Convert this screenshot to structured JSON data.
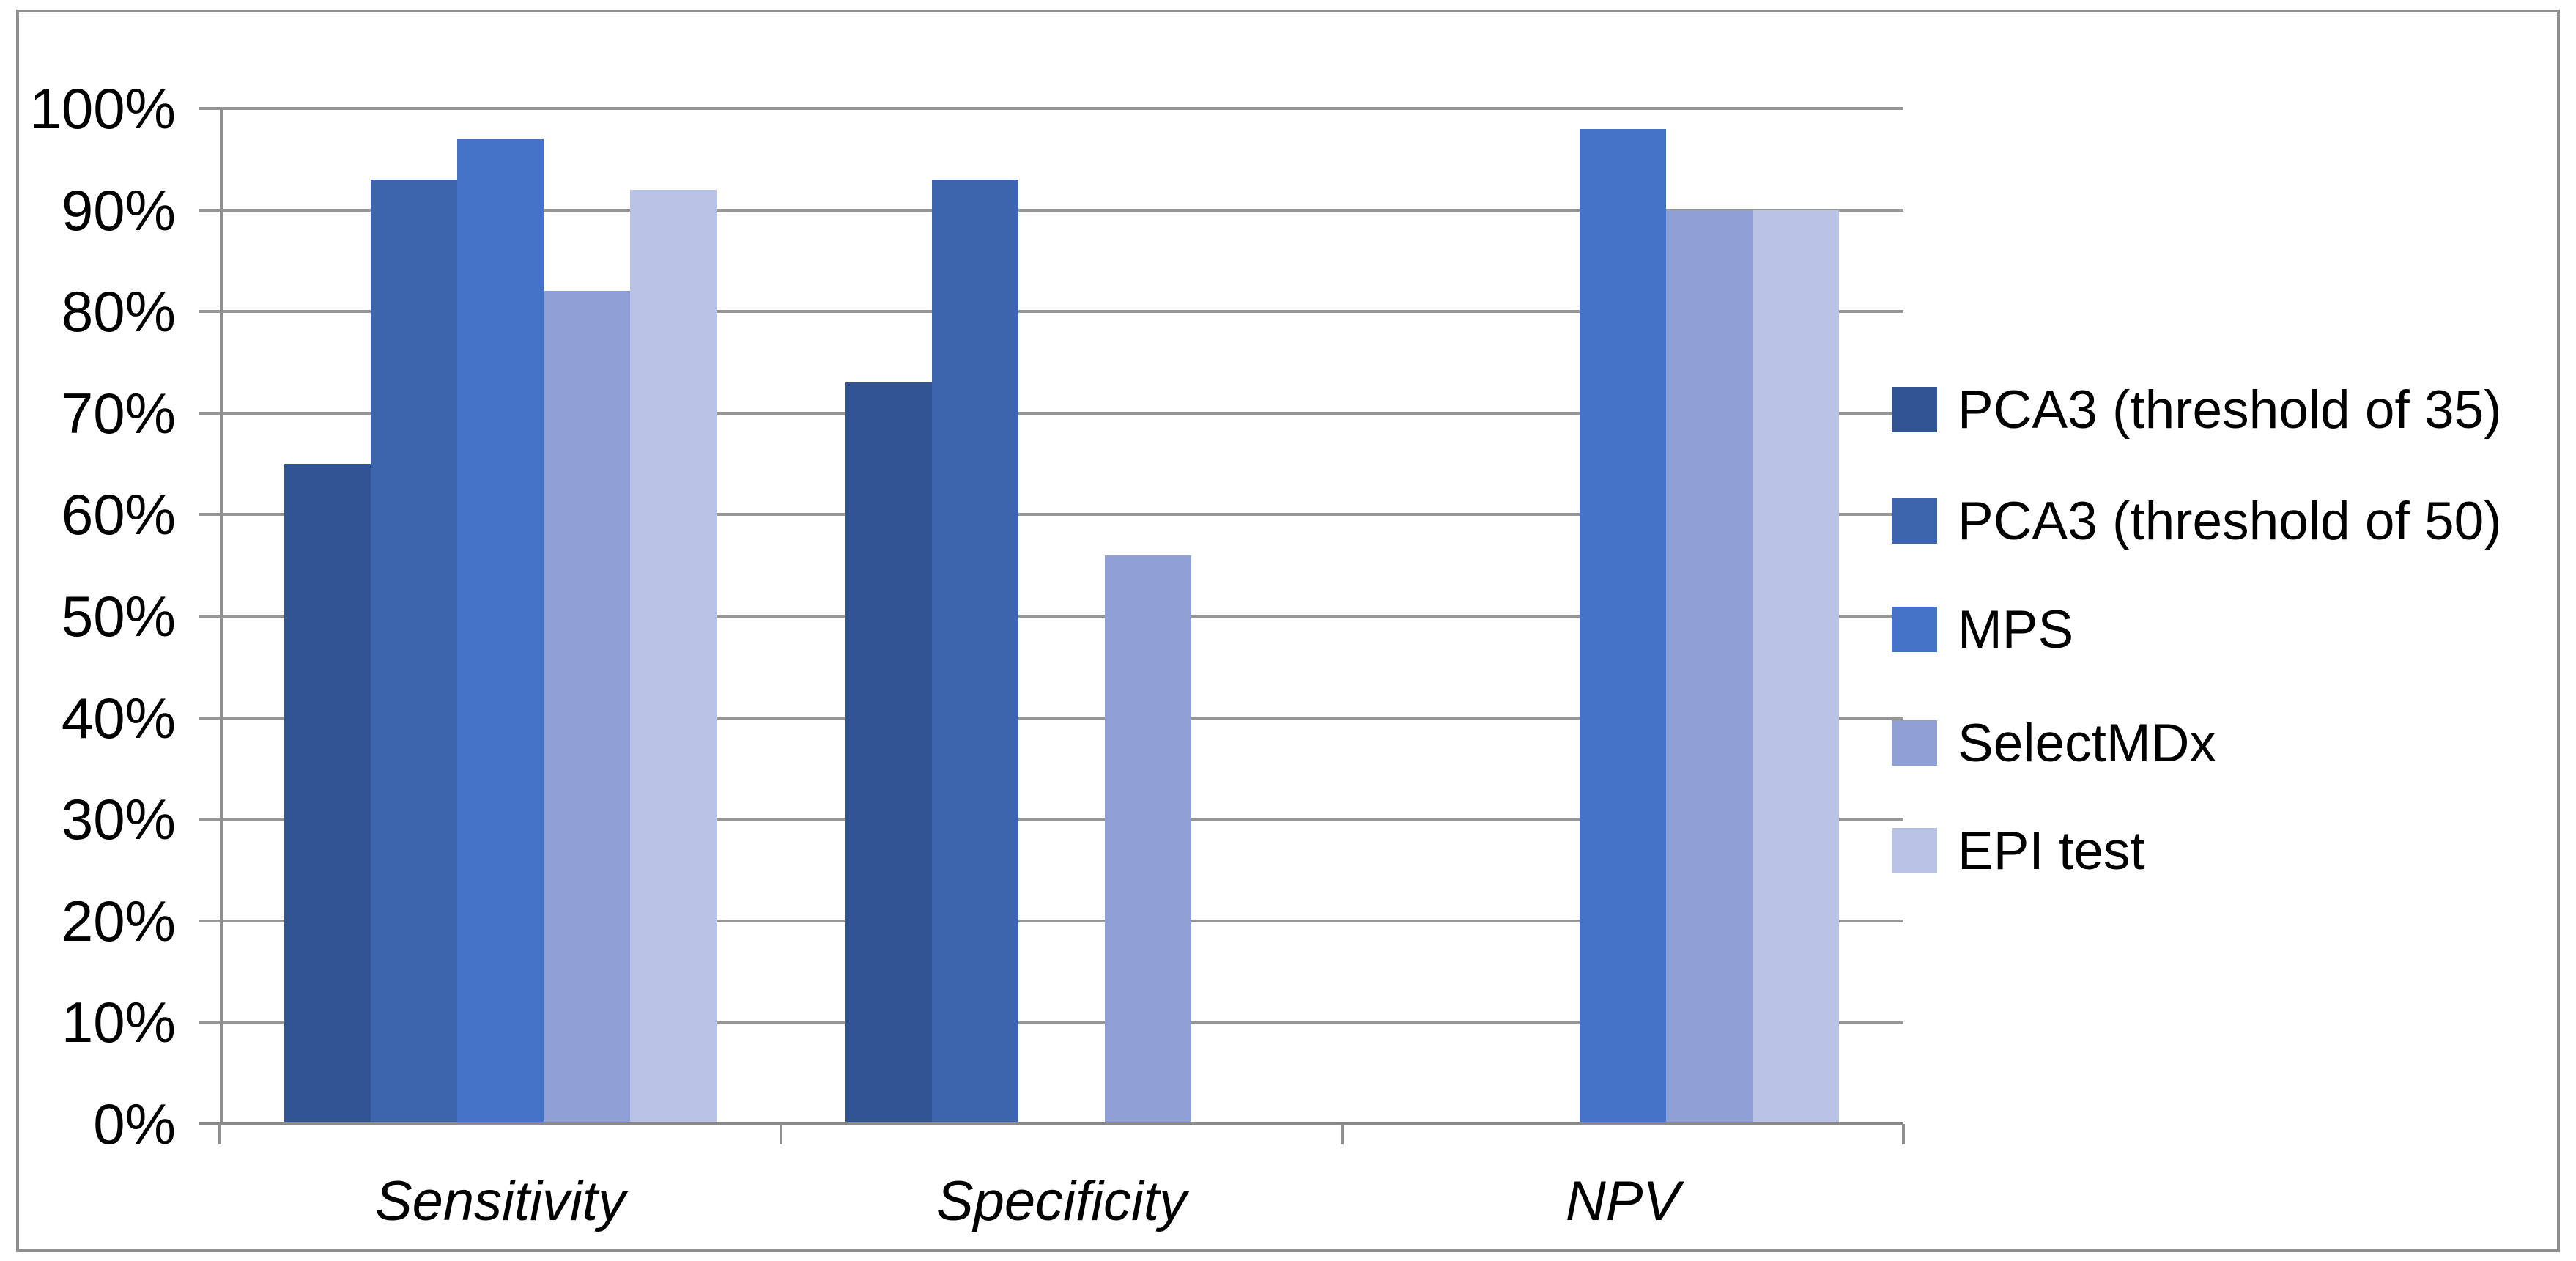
{
  "chart": {
    "background": "#ffffff",
    "border_color": "#8f8f8f",
    "grid_color": "#969696",
    "axis_color": "#8a8a8a",
    "text_color": "#000000"
  },
  "chart_data": {
    "type": "bar",
    "title": "",
    "categories": [
      "Sensitivity",
      "Specificity",
      "NPV"
    ],
    "series": [
      {
        "name": "PCA3 (threshold of 35)",
        "color": "#305391",
        "values": [
          65,
          73,
          null
        ]
      },
      {
        "name": "PCA3 (threshold of 50)",
        "color": "#3C65AE",
        "values": [
          93,
          93,
          null
        ]
      },
      {
        "name": "MPS",
        "color": "#4473C7",
        "values": [
          97,
          null,
          98
        ]
      },
      {
        "name": "SelectMDx",
        "color": "#8EA0D5",
        "values": [
          82,
          56,
          90
        ]
      },
      {
        "name": "EPI test",
        "color": "#B9C3E5",
        "values": [
          92,
          null,
          90
        ]
      }
    ],
    "y_axis": {
      "min": 0,
      "max": 100,
      "step": 10,
      "tick_labels": [
        "0%",
        "10%",
        "20%",
        "30%",
        "40%",
        "50%",
        "60%",
        "70%",
        "80%",
        "90%",
        "100%"
      ]
    },
    "x_axis": {
      "style": "italic"
    },
    "legend_position": "right",
    "grid": true,
    "bar_gap_percent": 150
  }
}
